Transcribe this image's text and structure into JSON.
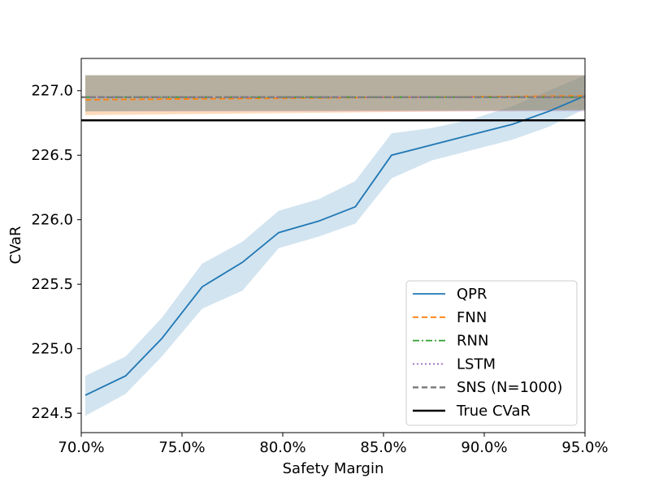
{
  "chart_data": {
    "type": "line",
    "title": "",
    "xlabel": "Safety Margin",
    "ylabel": "CVaR",
    "xlim": [
      70.0,
      95.0
    ],
    "ylim": [
      224.35,
      227.25
    ],
    "x_tick_values": [
      70,
      75,
      80,
      85,
      90,
      95
    ],
    "x_tick_labels": [
      "70.0%",
      "75.0%",
      "80.0%",
      "85.0%",
      "90.0%",
      "95.0%"
    ],
    "y_tick_values": [
      224.5,
      225.0,
      225.5,
      226.0,
      226.5,
      227.0
    ],
    "y_tick_labels": [
      "224.5",
      "225.0",
      "225.5",
      "226.0",
      "226.5",
      "227.0"
    ],
    "grid": false,
    "legend_position": "bottom-right",
    "legend": [
      "QPR",
      "FNN",
      "RNN",
      "LSTM",
      "SNS (N=1000)",
      "True CVaR"
    ],
    "series": [
      {
        "name": "QPR",
        "color": "#1f77b4",
        "style": "solid",
        "x": [
          70.2,
          72.2,
          74.0,
          76.0,
          78.0,
          79.8,
          81.8,
          83.6,
          85.4,
          87.4,
          89.4,
          91.4,
          93.2,
          95.0
        ],
        "y": [
          224.64,
          224.79,
          225.08,
          225.48,
          225.67,
          225.9,
          225.99,
          226.1,
          226.5,
          226.58,
          226.66,
          226.74,
          226.84,
          226.96
        ],
        "band_lower": [
          224.48,
          224.65,
          224.94,
          225.31,
          225.45,
          225.78,
          225.87,
          225.97,
          226.32,
          226.46,
          226.54,
          226.62,
          226.72,
          226.86
        ],
        "band_upper": [
          224.79,
          224.94,
          225.24,
          225.66,
          225.83,
          226.07,
          226.16,
          226.3,
          226.67,
          226.71,
          226.78,
          226.88,
          227.0,
          227.12
        ],
        "band_color": "#1f77b4"
      },
      {
        "name": "FNN",
        "color": "#ff7f0e",
        "style": "dashed",
        "x": [
          70.2,
          95.0
        ],
        "y": [
          226.93,
          226.96
        ],
        "band_lower": [
          226.81,
          226.85
        ],
        "band_upper": [
          227.12,
          227.12
        ],
        "band_color": "#ff7f0e"
      },
      {
        "name": "RNN",
        "color": "#2ca02c",
        "style": "dashdot",
        "x": [
          70.2,
          95.0
        ],
        "y": [
          226.95,
          226.95
        ],
        "band_lower": [
          226.84,
          226.85
        ],
        "band_upper": [
          227.12,
          227.12
        ],
        "band_color": "#2ca02c"
      },
      {
        "name": "LSTM",
        "color": "#9467bd",
        "style": "dotted",
        "x": [
          70.2,
          95.0
        ],
        "y": [
          226.95,
          226.95
        ],
        "band_lower": [
          226.84,
          226.84
        ],
        "band_upper": [
          227.12,
          227.12
        ],
        "band_color": "#9467bd"
      },
      {
        "name": "SNS (N=1000)",
        "color": "#7f7f7f",
        "style": "dashed",
        "x": [
          70.0,
          95.0
        ],
        "y": [
          226.95,
          226.95
        ]
      },
      {
        "name": "True CVaR",
        "color": "#000000",
        "style": "solid",
        "x": [
          70.0,
          95.0
        ],
        "y": [
          226.77,
          226.77
        ]
      }
    ]
  }
}
